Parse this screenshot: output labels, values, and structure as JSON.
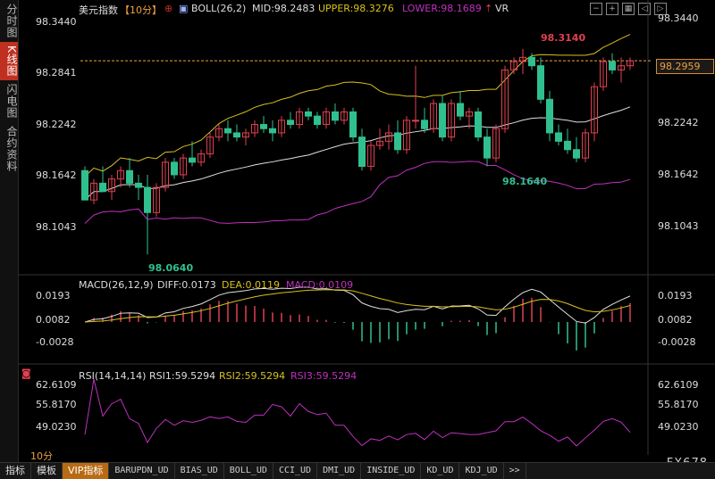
{
  "sidebar": {
    "tabs": [
      "分时图",
      "K线图",
      "闪电图",
      "合约资料"
    ],
    "active": 1
  },
  "header": {
    "title": "美元指数",
    "period": "【10分】",
    "boll": "BOLL(26,2)",
    "mid": "MID:98.2483",
    "upper": "UPPER:98.3276",
    "lower": "LOWER:98.1689",
    "vr": "VR"
  },
  "price_axis": {
    "left": [
      "98.3440",
      "98.2841",
      "98.2242",
      "98.1642",
      "98.1043"
    ],
    "right": [
      "98.3440",
      "98.2242",
      "98.1642",
      "98.1043"
    ],
    "current": "98.2959"
  },
  "annotations": {
    "high": "98.3140",
    "low": "98.0640",
    "mid_low": "98.1640"
  },
  "macd": {
    "label": "MACD(26,12,9)",
    "diff": "DIFF:0.0173",
    "dea": "DEA:0.0119",
    "macd": "MACD:0.0109",
    "ticks": [
      "0.0193",
      "0.0082",
      "-0.0028"
    ]
  },
  "rsi": {
    "label": "RSI(14,14,14)",
    "rsi1": "RSI1:59.5294",
    "rsi2": "RSI2:59.5294",
    "rsi3": "RSI3:59.5294",
    "ticks": [
      "62.6109",
      "55.8170",
      "49.0230"
    ]
  },
  "colors": {
    "up": "#e04050",
    "down": "#30c090",
    "mid": "#e0e0e0",
    "upper": "#d8c020",
    "lower": "#c030c0",
    "accent": "#f0a040"
  },
  "chart_data": {
    "type": "candlestick",
    "instrument": "美元指数",
    "interval": "10分",
    "ylim": [
      98.06,
      98.345
    ],
    "candles": [
      [
        98.165,
        98.17,
        98.13,
        98.13
      ],
      [
        98.13,
        98.155,
        98.125,
        98.15
      ],
      [
        98.15,
        98.17,
        98.14,
        98.14
      ],
      [
        98.14,
        98.16,
        98.13,
        98.155
      ],
      [
        98.155,
        98.17,
        98.145,
        98.165
      ],
      [
        98.165,
        98.18,
        98.145,
        98.15
      ],
      [
        98.15,
        98.16,
        98.13,
        98.145
      ],
      [
        98.145,
        98.16,
        98.065,
        98.115
      ],
      [
        98.115,
        98.15,
        98.11,
        98.145
      ],
      [
        98.145,
        98.18,
        98.14,
        98.175
      ],
      [
        98.175,
        98.18,
        98.155,
        98.16
      ],
      [
        98.16,
        98.185,
        98.155,
        98.18
      ],
      [
        98.18,
        98.2,
        98.17,
        98.175
      ],
      [
        98.175,
        98.19,
        98.17,
        98.185
      ],
      [
        98.185,
        98.21,
        98.18,
        98.205
      ],
      [
        98.205,
        98.22,
        98.2,
        98.215
      ],
      [
        98.215,
        98.225,
        98.2,
        98.21
      ],
      [
        98.21,
        98.22,
        98.2,
        98.205
      ],
      [
        98.205,
        98.215,
        98.195,
        98.21
      ],
      [
        98.21,
        98.225,
        98.205,
        98.22
      ],
      [
        98.22,
        98.23,
        98.21,
        98.215
      ],
      [
        98.215,
        98.225,
        98.2,
        98.21
      ],
      [
        98.21,
        98.23,
        98.205,
        98.225
      ],
      [
        98.225,
        98.235,
        98.215,
        98.22
      ],
      [
        98.22,
        98.24,
        98.215,
        98.235
      ],
      [
        98.235,
        98.24,
        98.225,
        98.23
      ],
      [
        98.23,
        98.235,
        98.215,
        98.22
      ],
      [
        98.22,
        98.24,
        98.215,
        98.235
      ],
      [
        98.235,
        98.245,
        98.22,
        98.225
      ],
      [
        98.225,
        98.24,
        98.22,
        98.235
      ],
      [
        98.235,
        98.24,
        98.2,
        98.205
      ],
      [
        98.205,
        98.215,
        98.165,
        98.17
      ],
      [
        98.17,
        98.2,
        98.165,
        98.195
      ],
      [
        98.195,
        98.215,
        98.19,
        98.2
      ],
      [
        98.2,
        98.22,
        98.19,
        98.21
      ],
      [
        98.21,
        98.225,
        98.185,
        98.19
      ],
      [
        98.19,
        98.23,
        98.185,
        98.225
      ],
      [
        98.225,
        98.29,
        98.215,
        98.225
      ],
      [
        98.225,
        98.24,
        98.21,
        98.215
      ],
      [
        98.215,
        98.25,
        98.21,
        98.245
      ],
      [
        98.245,
        98.255,
        98.2,
        98.205
      ],
      [
        98.205,
        98.25,
        98.2,
        98.245
      ],
      [
        98.245,
        98.26,
        98.225,
        98.23
      ],
      [
        98.23,
        98.24,
        98.215,
        98.235
      ],
      [
        98.235,
        98.24,
        98.2,
        98.205
      ],
      [
        98.205,
        98.215,
        98.17,
        98.18
      ],
      [
        98.18,
        98.22,
        98.175,
        98.215
      ],
      [
        98.215,
        98.29,
        98.21,
        98.285
      ],
      [
        98.285,
        98.3,
        98.28,
        98.295
      ],
      [
        98.295,
        98.31,
        98.28,
        98.3
      ],
      [
        98.3,
        98.305,
        98.285,
        98.29
      ],
      [
        98.29,
        98.3,
        98.245,
        98.25
      ],
      [
        98.25,
        98.26,
        98.2,
        98.21
      ],
      [
        98.21,
        98.22,
        98.195,
        98.2
      ],
      [
        98.2,
        98.215,
        98.185,
        98.19
      ],
      [
        98.19,
        98.205,
        98.175,
        98.18
      ],
      [
        98.18,
        98.215,
        98.175,
        98.21
      ],
      [
        98.21,
        98.27,
        98.2,
        98.265
      ],
      [
        98.265,
        98.3,
        98.26,
        98.295
      ],
      [
        98.295,
        98.305,
        98.28,
        98.285
      ],
      [
        98.285,
        98.3,
        98.27,
        98.29
      ],
      [
        98.29,
        98.3,
        98.285,
        98.296
      ]
    ],
    "macd_yticks": [
      0.0193,
      0.0082,
      -0.0028
    ],
    "rsi_yticks": [
      62.6109,
      55.817,
      49.023
    ]
  },
  "bottombar": {
    "tabs": [
      "指标",
      "模板",
      "VIP指标",
      "BARUPDN_UD",
      "BIAS_UD",
      "BOLL_UD",
      "CCI_UD",
      "DMI_UD",
      "INSIDE_UD",
      "KD_UD",
      "KDJ_UD",
      ">>"
    ],
    "period": "10分",
    "brand": "FX678"
  }
}
